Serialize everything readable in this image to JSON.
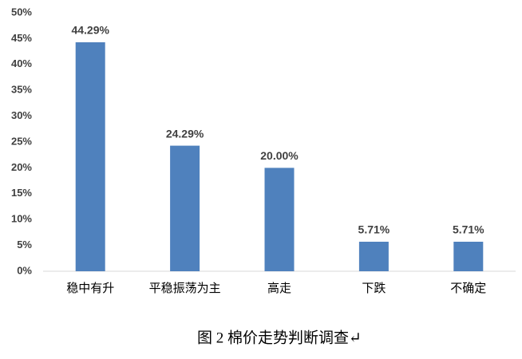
{
  "chart_data": {
    "type": "bar",
    "title": "图 2 棉价走势判断调查↵",
    "categories": [
      "稳中有升",
      "平稳振荡为主",
      "高走",
      "下跌",
      "不确定"
    ],
    "values": [
      44.29,
      24.29,
      20.0,
      5.71,
      5.71
    ],
    "value_labels": [
      "44.29%",
      "24.29%",
      "20.00%",
      "5.71%",
      "5.71%"
    ],
    "color": "#4f81bd",
    "ylim": [
      0,
      50
    ],
    "yticks": [
      {
        "value": 0,
        "label": "0%"
      },
      {
        "value": 5,
        "label": "5%"
      },
      {
        "value": 10,
        "label": "10%"
      },
      {
        "value": 15,
        "label": "15%"
      },
      {
        "value": 20,
        "label": "20%"
      },
      {
        "value": 25,
        "label": "25%"
      },
      {
        "value": 30,
        "label": "30%"
      },
      {
        "value": 35,
        "label": "35%"
      },
      {
        "value": 40,
        "label": "40%"
      },
      {
        "value": 45,
        "label": "45%"
      },
      {
        "value": 50,
        "label": "50%"
      }
    ],
    "grid": false
  }
}
